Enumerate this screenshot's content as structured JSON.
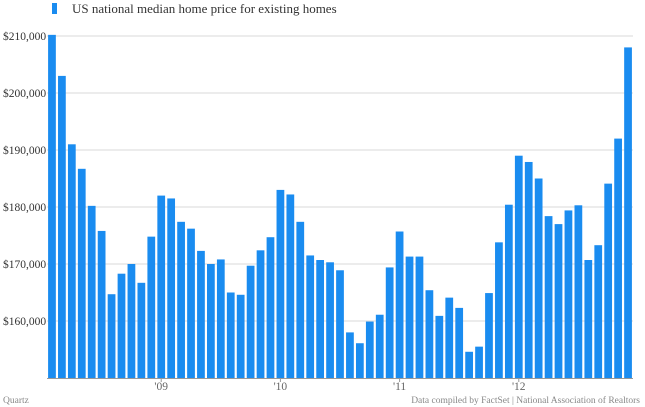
{
  "chart_data": {
    "type": "bar",
    "series": [
      {
        "name": "US national median home price for existing homes",
        "color": "#1a8cf0",
        "values": [
          210200,
          203000,
          191000,
          186700,
          180200,
          175800,
          164700,
          168300,
          170000,
          166700,
          174800,
          182000,
          181500,
          177400,
          176200,
          172300,
          170000,
          170800,
          165000,
          164600,
          169700,
          172400,
          174700,
          183000,
          182200,
          177400,
          171500,
          170700,
          170300,
          168900,
          158000,
          156100,
          159900,
          161100,
          169400,
          175700,
          171300,
          171300,
          165400,
          160900,
          164100,
          162300,
          154600,
          155500,
          164900,
          173800,
          180400,
          189000,
          187900,
          185000,
          178400,
          177000,
          179400,
          180300,
          170700,
          173300,
          184100,
          192000,
          208000
        ]
      }
    ],
    "ylim": [
      150000,
      210000
    ],
    "yticks": [
      {
        "value": 160000,
        "label": "$160,000"
      },
      {
        "value": 170000,
        "label": "$170,000"
      },
      {
        "value": 180000,
        "label": "$180,000"
      },
      {
        "value": 190000,
        "label": "$190,000"
      },
      {
        "value": 200000,
        "label": "$200,000"
      },
      {
        "value": 210000,
        "label": "$210,000"
      }
    ],
    "xticks": [
      {
        "index": 11,
        "label": "'09"
      },
      {
        "index": 23,
        "label": "'10"
      },
      {
        "index": 35,
        "label": "'11"
      },
      {
        "index": 47,
        "label": "'12"
      }
    ],
    "grid": true,
    "legend": "top-left"
  },
  "footer": {
    "source": "Quartz",
    "credit": "Data compiled by FactSet | National Association of Realtors"
  }
}
